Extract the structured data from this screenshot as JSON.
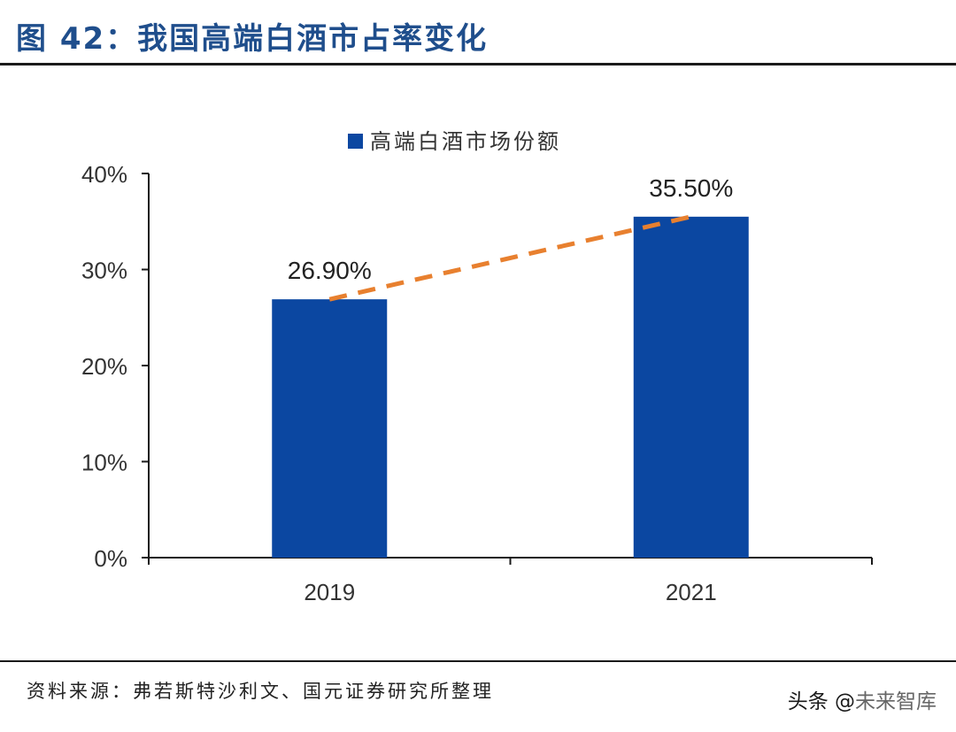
{
  "figure": {
    "title": "图 42：我国高端白酒市占率变化",
    "source": "资料来源：弗若斯特沙利文、国元证券研究所整理"
  },
  "watermark": {
    "prefix": "头条 @",
    "brand": "未来智库"
  },
  "colors": {
    "bar": "#0b47a1",
    "trend": "#e8802f",
    "title": "#1f4e8c",
    "axis": "#1a1a1a"
  },
  "chart_data": {
    "type": "bar",
    "categories": [
      "2019",
      "2021"
    ],
    "series": [
      {
        "name": "高端白酒市场份额",
        "values": [
          26.9,
          35.5
        ],
        "labels": [
          "26.90%",
          "35.50%"
        ]
      }
    ],
    "trend_line": {
      "style": "dashed",
      "from_value": 26.9,
      "to_value": 35.5
    },
    "ylim": [
      0,
      40
    ],
    "yticks": [
      0,
      10,
      20,
      30,
      40
    ],
    "ytick_labels": [
      "0%",
      "10%",
      "20%",
      "30%",
      "40%"
    ],
    "legend_position": "top-center",
    "grid": false,
    "xlabel": "",
    "ylabel": ""
  }
}
